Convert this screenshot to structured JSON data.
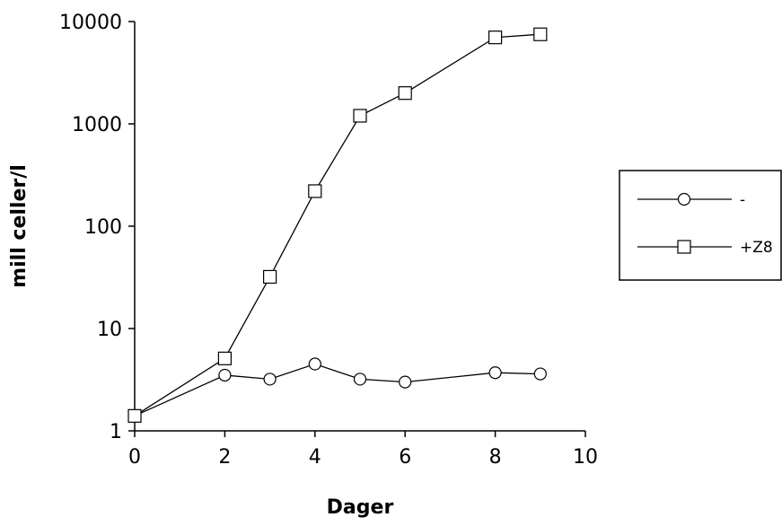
{
  "chart_data": {
    "type": "line",
    "xlabel": "Dager",
    "ylabel": "mill celler/l",
    "xlim": [
      0,
      10
    ],
    "ylim": [
      1,
      10000
    ],
    "yscale": "log",
    "grid": false,
    "legend_position": "right",
    "x_ticks": [
      "0",
      "2",
      "4",
      "6",
      "8",
      "10"
    ],
    "y_ticks": [
      "1",
      "10",
      "100",
      "1000",
      "10000"
    ],
    "series": [
      {
        "name": "-",
        "marker": "circle",
        "x": [
          0,
          2,
          3,
          4,
          5,
          6,
          8,
          9
        ],
        "y": [
          1.4,
          3.5,
          3.2,
          4.5,
          3.2,
          3.0,
          3.7,
          3.6
        ]
      },
      {
        "name": "+Z8",
        "marker": "square",
        "x": [
          0,
          2,
          3,
          4,
          5,
          6,
          8,
          9
        ],
        "y": [
          1.4,
          5.1,
          32,
          220,
          1200,
          2000,
          7000,
          7500
        ]
      }
    ]
  }
}
